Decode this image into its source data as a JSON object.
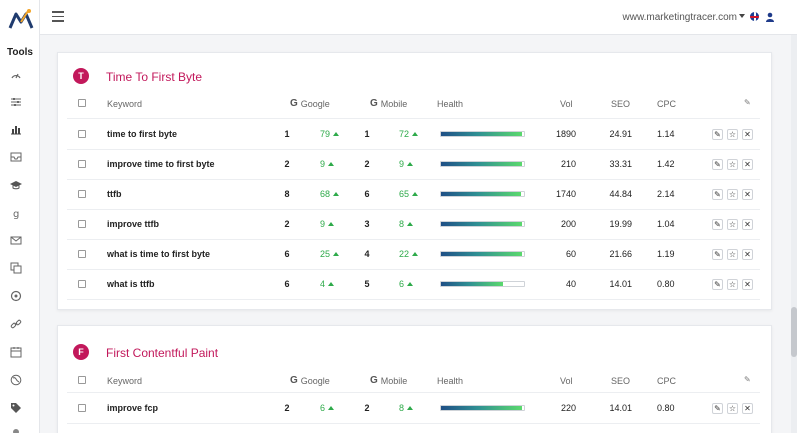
{
  "topbar": {
    "domain": "www.marketingtracer.com",
    "flag_icon": "uk-flag-icon",
    "user_icon": "user-icon"
  },
  "sidebar": {
    "tools_label": "Tools",
    "icons": [
      "gauge-icon",
      "sliders-icon",
      "bar-chart-icon",
      "inbox-icon",
      "graduation-cap-icon",
      "google-icon",
      "envelope-icon",
      "copy-icon",
      "target-icon",
      "link-icon",
      "calendar-icon",
      "globe-icon",
      "tag-icon"
    ]
  },
  "colors": {
    "accent": "#c2185b",
    "positive": "#2eaa4a",
    "health_start": "#1f4f86",
    "health_end": "#5bd96d"
  },
  "columns": {
    "keyword": "Keyword",
    "google": "Google",
    "mobile": "Mobile",
    "health": "Health",
    "vol": "Vol",
    "seo": "SEO",
    "cpc": "CPC"
  },
  "groups": [
    {
      "badge": "T",
      "title": "Time To First Byte",
      "rows": [
        {
          "keyword": "time to first byte",
          "google": "1",
          "google_change": "79",
          "mobile": "1",
          "mobile_change": "72",
          "health": 0.98,
          "vol": "1890",
          "seo": "24.91",
          "cpc": "1.14"
        },
        {
          "keyword": "improve time to first byte",
          "google": "2",
          "google_change": "9",
          "mobile": "2",
          "mobile_change": "9",
          "health": 0.98,
          "vol": "210",
          "seo": "33.31",
          "cpc": "1.42"
        },
        {
          "keyword": "ttfb",
          "google": "8",
          "google_change": "68",
          "mobile": "6",
          "mobile_change": "65",
          "health": 0.96,
          "vol": "1740",
          "seo": "44.84",
          "cpc": "2.14"
        },
        {
          "keyword": "improve ttfb",
          "google": "2",
          "google_change": "9",
          "mobile": "3",
          "mobile_change": "8",
          "health": 0.98,
          "vol": "200",
          "seo": "19.99",
          "cpc": "1.04"
        },
        {
          "keyword": "what is time to first byte",
          "google": "6",
          "google_change": "25",
          "mobile": "4",
          "mobile_change": "22",
          "health": 0.98,
          "vol": "60",
          "seo": "21.66",
          "cpc": "1.19"
        },
        {
          "keyword": "what is ttfb",
          "google": "6",
          "google_change": "4",
          "mobile": "5",
          "mobile_change": "6",
          "health": 0.75,
          "vol": "40",
          "seo": "14.01",
          "cpc": "0.80"
        }
      ]
    },
    {
      "badge": "F",
      "title": "First Contentful Paint",
      "rows": [
        {
          "keyword": "improve fcp",
          "google": "2",
          "google_change": "6",
          "mobile": "2",
          "mobile_change": "8",
          "health": 0.98,
          "vol": "220",
          "seo": "14.01",
          "cpc": "0.80"
        }
      ]
    }
  ]
}
